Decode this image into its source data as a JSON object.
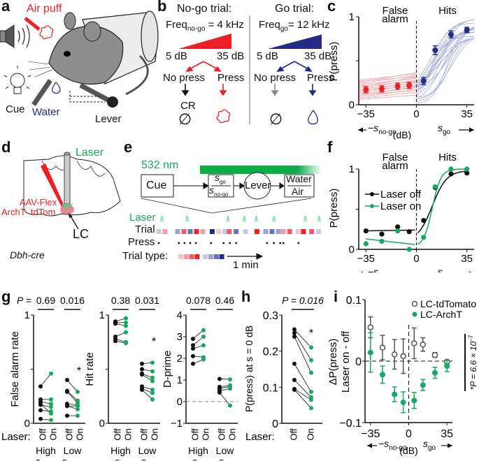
{
  "colors": {
    "red": "#ee2027",
    "navy": "#252a84",
    "light_red": "#f3a0a4",
    "light_blue": "#aab0d8",
    "green": "#17a864",
    "light_green": "#5ec98b",
    "gray": "#555555",
    "black": "#111111"
  },
  "panel_a": {
    "label": "a",
    "air_puff": "Air puff",
    "cue": "Cue",
    "water": "Water",
    "lever": "Lever",
    "icons": [
      "speaker-icon",
      "lightbulb-icon",
      "air-puff-nozzle-icon",
      "mouse-illustration",
      "water-spout-icon",
      "lever-icon"
    ]
  },
  "panel_b": {
    "label": "b",
    "nogo": {
      "title": "No-go trial:",
      "freq_prefix": "Freq",
      "freq_sub": "no-go",
      "freq_value": " = 4 kHz",
      "low": "5 dB",
      "high": "35 dB",
      "left": "No press",
      "right": "Press",
      "left_outcome": "CR",
      "left_symbol": "∅",
      "right_symbol": "air-puff-icon"
    },
    "go": {
      "title": "Go trial:",
      "freq_prefix": "Freq",
      "freq_sub": "go",
      "freq_value": "= 12 kHz",
      "low": "5 dB",
      "high": "35 dB",
      "left": "No press",
      "right": "Press",
      "left_symbol": "∅",
      "right_symbol": "water-drop-icon"
    }
  },
  "panel_c": {
    "label": "c",
    "chart_type": "line",
    "title_left": "False",
    "title_left2": "alarm",
    "title_right": "Hits",
    "ylabel": "P(press)",
    "yticks": [
      "0",
      "1"
    ],
    "xticks": [
      "−35",
      "0",
      "35"
    ],
    "xlabel_left": "−s",
    "xlabel_left_sub": "no-go",
    "xlabel_unit": "(dB)",
    "xlabel_right": "s",
    "xlabel_right_sub": "go"
  },
  "panel_d": {
    "label": "d",
    "laser": "Laser",
    "virus1": "AAV-Flex",
    "virus2": "ArchT- tdTom",
    "region": "LC",
    "strain": "Dbh-cre"
  },
  "panel_e": {
    "label": "e",
    "wavelength": "532 nm",
    "cue": "Cue",
    "stim_top": "s",
    "stim_top_sub": "go",
    "stim_bot": "s",
    "stim_bot_sub": "no-go",
    "lever": "Lever",
    "outcome_top": "Water",
    "outcome_bot": "Air",
    "row_laser": "Laser",
    "row_trial": "Trial",
    "row_press": "Press",
    "row_type": "Trial type:",
    "scale": "1 min",
    "laser_times": [
      0.5,
      4.5,
      11.0,
      13.6,
      15.5,
      18.3,
      23.3,
      25.5
    ],
    "trials": [
      {
        "x": 0,
        "c": "#c7cbe6"
      },
      {
        "x": 1,
        "c": "#f3a0a4"
      },
      {
        "x": 3,
        "c": "#9ca3cf"
      },
      {
        "x": 4,
        "c": "#ef5b62"
      },
      {
        "x": 5,
        "c": "#6b73b7"
      },
      {
        "x": 6,
        "c": "#ee2027"
      },
      {
        "x": 7,
        "c": "#f3a0a4"
      },
      {
        "x": 8.5,
        "c": "#252a84"
      },
      {
        "x": 9.5,
        "c": "#f6c5c8"
      },
      {
        "x": 10.5,
        "c": "#c7cbe6"
      },
      {
        "x": 11.2,
        "c": "#ef5b62"
      },
      {
        "x": 12.3,
        "c": "#6b73b7"
      },
      {
        "x": 13.8,
        "c": "#c7cbe6"
      },
      {
        "x": 15.6,
        "c": "#ee2027"
      },
      {
        "x": 17,
        "c": "#9ca3cf"
      },
      {
        "x": 18,
        "c": "#6b73b7"
      },
      {
        "x": 19,
        "c": "#9ca3cf"
      },
      {
        "x": 19.8,
        "c": "#f3a0a4"
      },
      {
        "x": 20.8,
        "c": "#ef5b62"
      },
      {
        "x": 22.2,
        "c": "#f6c5c8"
      },
      {
        "x": 23.0,
        "c": "#ee2027"
      },
      {
        "x": 24.3,
        "c": "#ef5b62"
      },
      {
        "x": 25.4,
        "c": "#c7cbe6"
      }
    ],
    "presses": [
      0,
      3.2,
      4.1,
      5.0,
      5.9,
      8.3,
      10.3,
      11.3,
      12.3,
      17.2,
      18.3,
      19.3,
      19.8,
      22.2
    ],
    "type_colors": [
      "#f6c5c8",
      "#f3a0a4",
      "#ef5b62",
      "#ee2027",
      "#c7cbe6",
      "#9ca3cf",
      "#6b73b7",
      "#252a84"
    ]
  },
  "panel_f": {
    "label": "f",
    "title_left": "False",
    "title_left2": "alarm",
    "title_right": "Hits",
    "ylabel": "P(press)",
    "yticks": [
      "0",
      "1"
    ],
    "xticks": [
      "−35",
      "0",
      "35"
    ],
    "legend": [
      "Laser off",
      "Laser on"
    ],
    "xlabel_left": "−s",
    "xlabel_left_sub": "no-go",
    "xlabel_unit": "(dB)",
    "xlabel_right": "s",
    "xlabel_right_sub": "go"
  },
  "panel_g": {
    "label": "g",
    "p_prefix": "P =",
    "laser_label": "Laser:",
    "off": "Off",
    "on": "On",
    "star": "*"
  },
  "panel_h": {
    "label": "h",
    "p_text": "P = 0.016",
    "ylabel": "P(press) at s = 0 dB",
    "yticks": [
      "0",
      "0.1",
      "0.2",
      "0.3"
    ],
    "laser_label": "Laser:",
    "off": "Off",
    "on": "On",
    "star": "*"
  },
  "panel_i": {
    "label": "i",
    "ylabel1": "ΔP(press)",
    "ylabel2": "Laser on - off",
    "yticks": [
      "−0.1",
      "0",
      "0.1"
    ],
    "xticks": [
      "−35",
      "0",
      "35"
    ],
    "legend": [
      "LC-tdTomato",
      "LC-ArchT"
    ],
    "p_text": "*P = 6.6 × 10",
    "p_exp": "−7",
    "xlabel_left": "−s",
    "xlabel_left_sub": "no-go",
    "xlabel_unit": "(dB)",
    "xlabel_right": "s",
    "xlabel_right_sub": "go"
  },
  "chart_data": [
    {
      "id": "c",
      "type": "line",
      "title": "False alarm / Hits",
      "xlabel": "−s_no-go / s_go (dB)",
      "ylabel": "P(press)",
      "xlim": [
        -40,
        40
      ],
      "ylim": [
        0,
        1
      ],
      "series": [
        {
          "name": "False alarm (no-go)",
          "color": "#ee2027",
          "x": [
            -35,
            -24,
            -13,
            -5
          ],
          "y": [
            0.17,
            0.18,
            0.21,
            0.22
          ],
          "err": [
            0.035,
            0.035,
            0.035,
            0.035
          ]
        },
        {
          "name": "Hits (go)",
          "color": "#252a84",
          "x": [
            5,
            13,
            24,
            35
          ],
          "y": [
            0.27,
            0.62,
            0.8,
            0.85
          ],
          "err": [
            0.04,
            0.05,
            0.04,
            0.03
          ]
        }
      ],
      "individual_fits": "≈20 per-animal psychometric fits (light red: false alarm, light blue: hits)"
    },
    {
      "id": "f",
      "type": "line",
      "xlim": [
        -40,
        40
      ],
      "ylim": [
        0,
        1
      ],
      "ylabel": "P(press)",
      "series": [
        {
          "name": "Laser off",
          "color": "#111111",
          "x": [
            -35,
            -24,
            -13,
            -5,
            5,
            13,
            24,
            35
          ],
          "y": [
            0.23,
            0.19,
            0.28,
            0.22,
            0.36,
            0.77,
            0.94,
            0.95
          ]
        },
        {
          "name": "Laser on",
          "color": "#17a864",
          "x": [
            -35,
            -24,
            -13,
            -5,
            5,
            13,
            24,
            35
          ],
          "y": [
            0.07,
            0.1,
            0.23,
            0.0,
            0.15,
            0.78,
            1.0,
            1.0
          ]
        }
      ]
    },
    {
      "id": "g-false-alarm",
      "type": "scatter",
      "ylabel": "False alarm rate",
      "ylim": [
        0,
        1
      ],
      "groups": [
        {
          "name": "High s_no-go",
          "p": "0.69",
          "off": [
            0.34,
            0.22,
            0.2,
            0.17,
            0.12,
            0.04,
            0.18
          ],
          "on": [
            0.46,
            0.22,
            0.18,
            0.15,
            0.11,
            0.03,
            0.09
          ]
        },
        {
          "name": "Low s_n-ogo",
          "p": "0.016",
          "star": true,
          "off": [
            0.4,
            0.3,
            0.29,
            0.18,
            0.16,
            0.07,
            0.16
          ],
          "on": [
            0.29,
            0.21,
            0.19,
            0.17,
            0.13,
            0.07,
            0.16
          ]
        }
      ]
    },
    {
      "id": "g-hit-rate",
      "type": "scatter",
      "ylabel": "Hit rate",
      "ylim": [
        0,
        1
      ],
      "groups": [
        {
          "name": "High s_go",
          "p": "0.38",
          "off": [
            0.94,
            0.93,
            0.92,
            0.8,
            0.78,
            0.76
          ],
          "on": [
            0.97,
            0.93,
            0.9,
            0.84,
            0.75,
            0.74
          ]
        },
        {
          "name": "Low s_go",
          "p": "0.031",
          "star": true,
          "off": [
            0.55,
            0.5,
            0.46,
            0.45,
            0.34,
            0.32,
            0.31
          ],
          "on": [
            0.56,
            0.48,
            0.42,
            0.39,
            0.31,
            0.28,
            0.22
          ]
        }
      ]
    },
    {
      "id": "g-d-prime",
      "type": "scatter",
      "ylabel": "D-prime",
      "ylim": [
        -1,
        4
      ],
      "groups": [
        {
          "name": "High s_go",
          "p": "0.078",
          "off": [
            2.9,
            2.6,
            2.45,
            2.1,
            1.75
          ],
          "on": [
            3.3,
            3.0,
            2.6,
            2.05,
            1.95
          ]
        },
        {
          "name": "Low s_go",
          "p": "0.46",
          "off": [
            1.05,
            0.68,
            0.6,
            0.5,
            0.42
          ],
          "on": [
            1.03,
            0.75,
            0.7,
            0.6,
            -0.18
          ]
        }
      ]
    },
    {
      "id": "h",
      "type": "scatter",
      "ylabel": "P(press) at s = 0 dB",
      "ylim": [
        0,
        0.3
      ],
      "p": "0.016",
      "off": [
        0.26,
        0.25,
        0.24,
        0.165,
        0.12,
        0.095,
        0.093
      ],
      "on": [
        0.21,
        0.175,
        0.14,
        0.087,
        0.072,
        0.065,
        0.042
      ]
    },
    {
      "id": "i",
      "type": "scatter",
      "ylabel": "ΔP(press) Laser on - off",
      "ylim": [
        -0.1,
        0.1
      ],
      "xlim": [
        -40,
        40
      ],
      "series": [
        {
          "name": "LC-tdTomato",
          "style": "open",
          "color": "#555555",
          "x": [
            -35,
            -24,
            -13,
            -5,
            5,
            13,
            24,
            35
          ],
          "y": [
            0.055,
            0.022,
            0.011,
            0.008,
            0.029,
            0.027,
            0.01,
            -0.001
          ],
          "err": [
            0.017,
            0.02,
            0.024,
            0.028,
            0.025,
            0.011,
            0.004,
            0.003
          ]
        },
        {
          "name": "LC-ArchT",
          "style": "filled",
          "color": "#17a864",
          "x": [
            -35,
            -24,
            -13,
            -5,
            5,
            13,
            24,
            35
          ],
          "y": [
            0.014,
            -0.022,
            -0.054,
            -0.067,
            -0.064,
            -0.039,
            -0.019,
            -0.008
          ],
          "err": [
            0.032,
            0.014,
            0.012,
            0.017,
            0.013,
            0.009,
            0.009,
            0.009
          ]
        }
      ],
      "annotation": "*P = 6.6 × 10^-7"
    }
  ]
}
